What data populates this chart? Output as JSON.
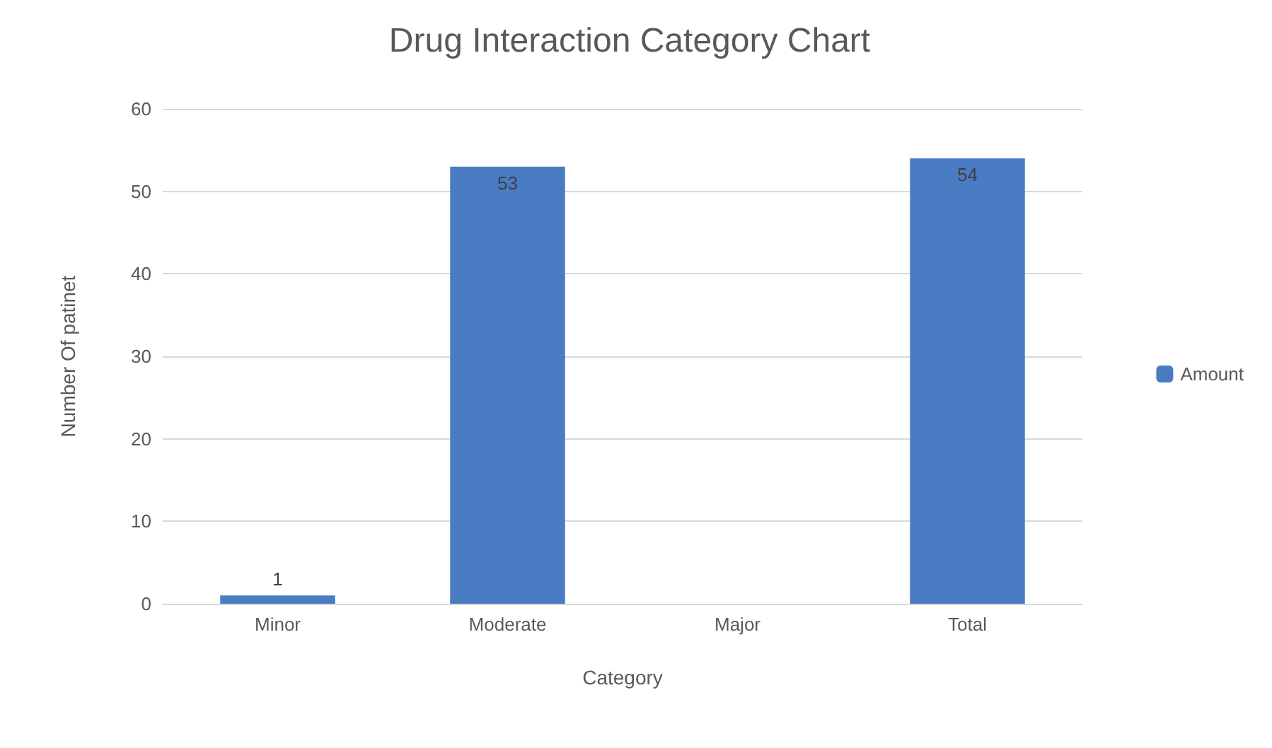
{
  "chart_data": {
    "type": "bar",
    "title": "Drug Interaction Category Chart",
    "xlabel": "Category",
    "ylabel": "Number Of patinet",
    "categories": [
      "Minor",
      "Moderate",
      "Major",
      "Total"
    ],
    "series": [
      {
        "name": "Amount",
        "color": "#4a7cc4",
        "values": [
          1,
          53,
          null,
          54
        ]
      }
    ],
    "ylim": [
      0,
      60
    ],
    "yticks": [
      0,
      10,
      20,
      30,
      40,
      50,
      60
    ],
    "grid": "y",
    "legend": "right",
    "data_labels": true
  }
}
